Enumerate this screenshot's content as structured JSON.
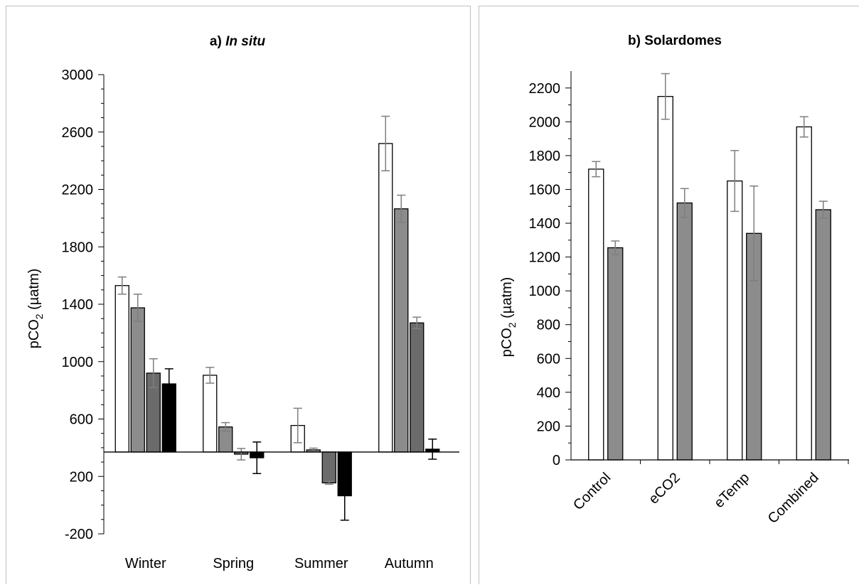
{
  "chart_data": [
    {
      "type": "bar",
      "title_prefix": "a)",
      "title_italic": "In situ",
      "ylabel": "pCO",
      "ylabel_sub": "2",
      "ylabel_unit": " (µatm)",
      "ylim": [
        -200,
        3000
      ],
      "yticks": [
        -200,
        200,
        600,
        1000,
        1400,
        1800,
        2200,
        2600,
        3000
      ],
      "baseline": 370,
      "grid": false,
      "categories": [
        "Winter",
        "Spring",
        "Summer",
        "Autumn"
      ],
      "series": [
        {
          "color": "#ffffff",
          "values": [
            1530,
            905,
            555,
            2520
          ],
          "errors": [
            60,
            55,
            120,
            190
          ]
        },
        {
          "color": "#8c8c8c",
          "values": [
            1375,
            545,
            385,
            2065
          ],
          "errors": [
            95,
            30,
            12,
            95
          ]
        },
        {
          "color": "#6b6b6b",
          "values": [
            920,
            355,
            155,
            1270
          ],
          "errors": [
            100,
            40,
            10,
            40
          ]
        },
        {
          "color": "#000000",
          "values": [
            845,
            330,
            65,
            390
          ],
          "errors": [
            105,
            110,
            170,
            70
          ]
        }
      ]
    },
    {
      "type": "bar",
      "title": "b) Solardomes",
      "ylabel": "pCO",
      "ylabel_sub": "2",
      "ylabel_unit": " (µatm)",
      "ylim": [
        0,
        2300
      ],
      "yticks": [
        0,
        200,
        400,
        600,
        800,
        1000,
        1200,
        1400,
        1600,
        1800,
        2000,
        2200
      ],
      "grid": false,
      "categories": [
        "Control",
        "eCO2",
        "eTemp",
        "Combined"
      ],
      "series": [
        {
          "color": "#ffffff",
          "values": [
            1720,
            2150,
            1650,
            1970
          ],
          "errors": [
            45,
            135,
            180,
            60
          ]
        },
        {
          "color": "#8c8c8c",
          "values": [
            1255,
            1520,
            1340,
            1480
          ],
          "errors": [
            40,
            85,
            280,
            50
          ]
        }
      ]
    }
  ]
}
